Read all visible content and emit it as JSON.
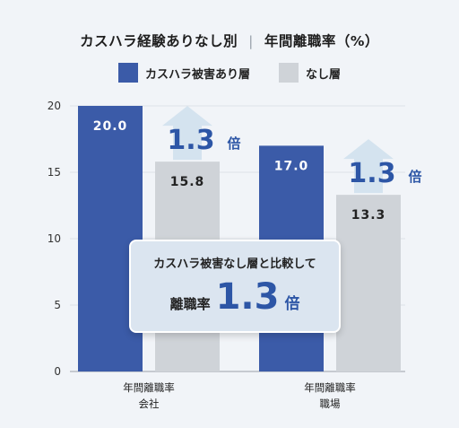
{
  "title": {
    "left": "カスハラ経験ありなし別",
    "separator": "|",
    "right": "年間離職率（%）"
  },
  "legend": [
    {
      "label": "カスハラ被害あり層",
      "color": "#3b5ba8"
    },
    {
      "label": "なし層",
      "color": "#cfd3d8"
    }
  ],
  "chart_data": {
    "type": "bar",
    "categories": [
      {
        "line1": "年間離職率",
        "line2": "会社"
      },
      {
        "line1": "年間離職率",
        "line2": "職場"
      }
    ],
    "series": [
      {
        "name": "カスハラ被害あり層",
        "values": [
          20.0,
          17.0
        ],
        "labels": [
          "20.0",
          "17.0"
        ],
        "color": "#3b5ba8",
        "label_color": "#ffffff"
      },
      {
        "name": "なし層",
        "values": [
          15.8,
          13.3
        ],
        "labels": [
          "15.8",
          "13.3"
        ],
        "color": "#cfd3d8",
        "label_color": "#222222"
      }
    ],
    "ylim": [
      0,
      20
    ],
    "yticks": [
      0,
      5,
      10,
      15,
      20
    ],
    "grid": true,
    "annotations": [
      {
        "value": "1.3",
        "unit": "倍"
      },
      {
        "value": "1.3",
        "unit": "倍"
      }
    ]
  },
  "callout": {
    "line1": "カスハラ被害なし層と比較して",
    "label": "離職率",
    "value": "1.3",
    "unit": "倍"
  }
}
